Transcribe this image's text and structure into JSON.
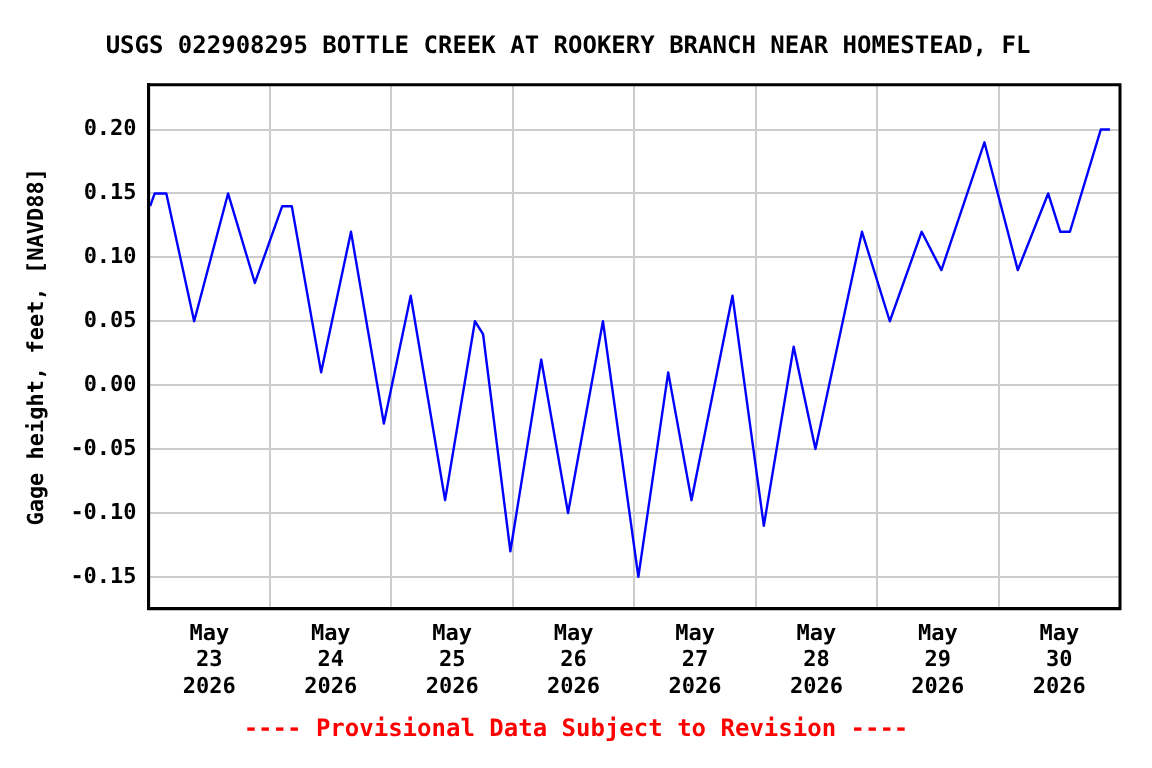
{
  "chart_data": {
    "type": "line",
    "title": "USGS 022908295 BOTTLE CREEK AT ROOKERY BRANCH NEAR HOMESTEAD, FL",
    "ylabel": "Gage height, feet, [NAVD88]",
    "annotations": [
      "---- Provisional Data Subject to Revision ----"
    ],
    "x": [
      "2026-05-23T00:18",
      "2026-05-23T01:12",
      "2026-05-23T03:30",
      "2026-05-23T09:00",
      "2026-05-23T15:42",
      "2026-05-23T21:00",
      "2026-05-24T02:24",
      "2026-05-24T04:18",
      "2026-05-24T10:06",
      "2026-05-24T16:00",
      "2026-05-24T22:30",
      "2026-05-25T03:48",
      "2026-05-25T10:36",
      "2026-05-25T16:30",
      "2026-05-25T18:06",
      "2026-05-25T23:30",
      "2026-05-26T05:36",
      "2026-05-26T10:54",
      "2026-05-26T17:48",
      "2026-05-27T00:48",
      "2026-05-27T06:42",
      "2026-05-27T11:18",
      "2026-05-27T19:24",
      "2026-05-28T01:36",
      "2026-05-28T07:30",
      "2026-05-28T11:48",
      "2026-05-28T21:00",
      "2026-05-29T02:30",
      "2026-05-29T08:48",
      "2026-05-29T12:42",
      "2026-05-29T21:12",
      "2026-05-30T03:48",
      "2026-05-30T09:48",
      "2026-05-30T12:12",
      "2026-05-30T14:06",
      "2026-05-30T20:12",
      "2026-05-30T22:00"
    ],
    "series": [
      {
        "color": "#0000ff",
        "values": [
          0.14,
          0.15,
          0.15,
          0.05,
          0.15,
          0.08,
          0.14,
          0.14,
          0.01,
          0.12,
          -0.03,
          0.07,
          -0.09,
          0.05,
          0.04,
          -0.13,
          0.02,
          -0.1,
          0.05,
          -0.15,
          0.01,
          -0.09,
          0.07,
          -0.11,
          0.03,
          -0.05,
          0.12,
          0.05,
          0.12,
          0.09,
          0.19,
          0.09,
          0.15,
          0.12,
          0.12,
          0.2,
          0.2
        ]
      }
    ],
    "xlim": [
      "2026-05-23T00:00",
      "2026-05-31T00:00"
    ],
    "xticks": [
      {
        "value": "2026-05-23T12:00",
        "label": "May 23 2026"
      },
      {
        "value": "2026-05-24T00:00",
        "label": null
      },
      {
        "value": "2026-05-24T12:00",
        "label": "May 24 2026"
      },
      {
        "value": "2026-05-25T00:00",
        "label": null
      },
      {
        "value": "2026-05-25T12:00",
        "label": "May 25 2026"
      },
      {
        "value": "2026-05-26T00:00",
        "label": null
      },
      {
        "value": "2026-05-26T12:00",
        "label": "May 26 2026"
      },
      {
        "value": "2026-05-27T00:00",
        "label": null
      },
      {
        "value": "2026-05-27T12:00",
        "label": "May 27 2026"
      },
      {
        "value": "2026-05-28T00:00",
        "label": null
      },
      {
        "value": "2026-05-28T12:00",
        "label": "May 28 2026"
      },
      {
        "value": "2026-05-29T00:00",
        "label": null
      },
      {
        "value": "2026-05-29T12:00",
        "label": "May 29 2026"
      },
      {
        "value": "2026-05-30T00:00",
        "label": null
      },
      {
        "value": "2026-05-30T12:00",
        "label": "May 30 2026"
      }
    ],
    "ylim": [
      -0.175,
      0.235
    ],
    "yticks": [
      {
        "value": -0.15,
        "label": "-0.15"
      },
      {
        "value": -0.1,
        "label": "-0.10"
      },
      {
        "value": -0.05,
        "label": "-0.05"
      },
      {
        "value": 0,
        "label": "0.00"
      },
      {
        "value": 0.05,
        "label": "0.05"
      },
      {
        "value": 0.1,
        "label": "0.10"
      },
      {
        "value": 0.15,
        "label": "0.15"
      },
      {
        "value": 0.2,
        "label": "0.20"
      }
    ],
    "grid": true,
    "legend": false,
    "marker": "none",
    "line_style": "solid"
  }
}
